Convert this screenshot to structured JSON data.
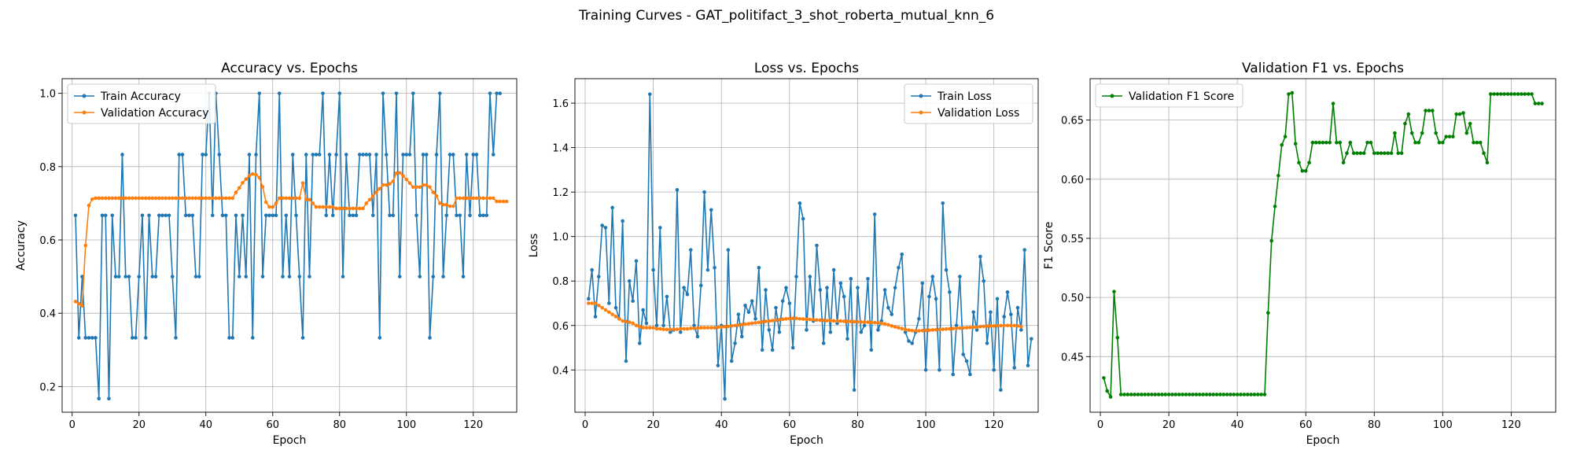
{
  "figure": {
    "suptitle": "Training Curves - GAT_politifact_3_shot_roberta_mutual_knn_6"
  },
  "chart_data": [
    {
      "type": "line",
      "title": "Accuracy vs. Epochs",
      "xlabel": "Epoch",
      "ylabel": "Accuracy",
      "xlim": [
        -3,
        133
      ],
      "ylim": [
        0.13,
        1.04
      ],
      "xticks": [
        0,
        20,
        40,
        60,
        80,
        100,
        120
      ],
      "yticks": [
        0.2,
        0.4,
        0.6,
        0.8,
        1.0
      ],
      "ytick_labels": [
        "0.2",
        "0.4",
        "0.6",
        "0.8",
        "1.0"
      ],
      "grid": true,
      "legend": "upper-left",
      "series": [
        {
          "name": "Train Accuracy",
          "color": "#1f77b4",
          "values": [
            0.667,
            0.333,
            0.5,
            0.333,
            0.333,
            0.333,
            0.333,
            0.167,
            0.667,
            0.667,
            0.167,
            0.667,
            0.5,
            0.5,
            0.833,
            0.5,
            0.5,
            0.333,
            0.333,
            0.5,
            0.667,
            0.333,
            0.667,
            0.5,
            0.5,
            0.667,
            0.667,
            0.667,
            0.667,
            0.5,
            0.333,
            0.833,
            0.833,
            0.667,
            0.667,
            0.667,
            0.5,
            0.5,
            0.833,
            0.833,
            1.0,
            0.667,
            1.0,
            0.833,
            0.667,
            0.667,
            0.333,
            0.333,
            0.667,
            0.5,
            0.667,
            0.5,
            0.833,
            0.333,
            0.833,
            1.0,
            0.5,
            0.667,
            0.667,
            0.667,
            0.667,
            1.0,
            0.5,
            0.667,
            0.5,
            0.833,
            0.667,
            0.5,
            0.333,
            0.833,
            0.5,
            0.833,
            0.833,
            0.833,
            1.0,
            0.667,
            0.833,
            0.667,
            0.833,
            1.0,
            0.5,
            0.833,
            0.667,
            0.667,
            0.667,
            0.833,
            0.833,
            0.833,
            0.833,
            0.667,
            0.833,
            0.333,
            1.0,
            0.833,
            0.667,
            0.667,
            1.0,
            0.5,
            0.833,
            0.833,
            0.833,
            1.0,
            0.667,
            0.5,
            0.833,
            0.833,
            0.333,
            0.5,
            0.833,
            1.0,
            0.5,
            0.667,
            0.833,
            0.833,
            0.667,
            0.667,
            0.5,
            0.833,
            0.667,
            0.833,
            0.833,
            0.667,
            0.667,
            0.667,
            1.0,
            0.833,
            1.0,
            1.0
          ]
        },
        {
          "name": "Validation Accuracy",
          "color": "#ff7f0e",
          "values": [
            0.432,
            0.426,
            0.42,
            0.585,
            0.694,
            0.711,
            0.714,
            0.714,
            0.714,
            0.714,
            0.714,
            0.714,
            0.714,
            0.714,
            0.714,
            0.714,
            0.714,
            0.714,
            0.714,
            0.714,
            0.714,
            0.714,
            0.714,
            0.714,
            0.714,
            0.714,
            0.714,
            0.714,
            0.714,
            0.714,
            0.714,
            0.714,
            0.714,
            0.714,
            0.714,
            0.714,
            0.714,
            0.714,
            0.714,
            0.714,
            0.714,
            0.714,
            0.714,
            0.714,
            0.714,
            0.714,
            0.714,
            0.714,
            0.73,
            0.742,
            0.756,
            0.766,
            0.775,
            0.78,
            0.778,
            0.77,
            0.745,
            0.703,
            0.69,
            0.69,
            0.7,
            0.714,
            0.714,
            0.714,
            0.714,
            0.714,
            0.714,
            0.714,
            0.755,
            0.71,
            0.71,
            0.7,
            0.69,
            0.69,
            0.69,
            0.69,
            0.69,
            0.69,
            0.686,
            0.686,
            0.686,
            0.686,
            0.686,
            0.686,
            0.686,
            0.686,
            0.686,
            0.7,
            0.71,
            0.72,
            0.73,
            0.74,
            0.75,
            0.75,
            0.753,
            0.76,
            0.782,
            0.783,
            0.775,
            0.765,
            0.755,
            0.744,
            0.744,
            0.744,
            0.75,
            0.75,
            0.744,
            0.73,
            0.72,
            0.7,
            0.696,
            0.696,
            0.692,
            0.692,
            0.714,
            0.714,
            0.714,
            0.714,
            0.714,
            0.714,
            0.714,
            0.714,
            0.714,
            0.714,
            0.714,
            0.714,
            0.705,
            0.705,
            0.705,
            0.705
          ]
        }
      ]
    },
    {
      "type": "line",
      "title": "Loss vs. Epochs",
      "xlabel": "Epoch",
      "ylabel": "Loss",
      "xlim": [
        -3,
        133
      ],
      "ylim": [
        0.21,
        1.71
      ],
      "xticks": [
        0,
        20,
        40,
        60,
        80,
        100,
        120
      ],
      "yticks": [
        0.4,
        0.6,
        0.8,
        1.0,
        1.2,
        1.4,
        1.6
      ],
      "ytick_labels": [
        "0.4",
        "0.6",
        "0.8",
        "1.0",
        "1.2",
        "1.4",
        "1.6"
      ],
      "grid": true,
      "legend": "upper-right",
      "series": [
        {
          "name": "Train Loss",
          "color": "#1f77b4",
          "values": [
            0.72,
            0.85,
            0.64,
            0.82,
            1.05,
            1.04,
            0.7,
            1.13,
            0.68,
            0.63,
            1.07,
            0.44,
            0.8,
            0.71,
            0.89,
            0.52,
            0.67,
            0.61,
            1.64,
            0.85,
            0.6,
            1.04,
            0.6,
            0.73,
            0.57,
            0.58,
            1.21,
            0.57,
            0.77,
            0.74,
            0.94,
            0.6,
            0.55,
            0.78,
            1.2,
            0.85,
            1.12,
            0.86,
            0.42,
            0.6,
            0.27,
            0.94,
            0.44,
            0.52,
            0.65,
            0.55,
            0.69,
            0.66,
            0.71,
            0.63,
            0.86,
            0.49,
            0.76,
            0.58,
            0.49,
            0.68,
            0.57,
            0.71,
            0.77,
            0.7,
            0.5,
            0.82,
            1.15,
            1.08,
            0.58,
            0.82,
            0.62,
            0.96,
            0.76,
            0.52,
            0.77,
            0.57,
            0.85,
            0.61,
            0.79,
            0.73,
            0.54,
            0.81,
            0.31,
            0.77,
            0.57,
            0.6,
            0.81,
            0.49,
            1.1,
            0.58,
            0.62,
            0.76,
            0.68,
            0.65,
            0.77,
            0.86,
            0.92,
            0.57,
            0.53,
            0.52,
            0.57,
            0.63,
            0.79,
            0.4,
            0.73,
            0.82,
            0.72,
            0.4,
            1.15,
            0.85,
            0.75,
            0.38,
            0.6,
            0.82,
            0.47,
            0.44,
            0.38,
            0.66,
            0.58,
            0.91,
            0.8,
            0.52,
            0.66,
            0.4,
            0.72,
            0.31,
            0.64,
            0.75,
            0.65,
            0.41,
            0.68,
            0.58,
            0.94,
            0.42,
            0.54
          ]
        },
        {
          "name": "Validation Loss",
          "color": "#ff7f0e",
          "values": [
            0.7,
            0.7,
            0.7,
            0.69,
            0.68,
            0.67,
            0.66,
            0.65,
            0.64,
            0.63,
            0.62,
            0.618,
            0.615,
            0.61,
            0.6,
            0.595,
            0.59,
            0.59,
            0.59,
            0.59,
            0.585,
            0.585,
            0.583,
            0.582,
            0.582,
            0.583,
            0.583,
            0.585,
            0.585,
            0.585,
            0.587,
            0.587,
            0.588,
            0.59,
            0.59,
            0.59,
            0.59,
            0.59,
            0.592,
            0.593,
            0.595,
            0.596,
            0.598,
            0.6,
            0.602,
            0.604,
            0.606,
            0.608,
            0.61,
            0.612,
            0.614,
            0.616,
            0.618,
            0.62,
            0.622,
            0.624,
            0.626,
            0.628,
            0.63,
            0.631,
            0.632,
            0.632,
            0.63,
            0.629,
            0.628,
            0.627,
            0.626,
            0.625,
            0.624,
            0.623,
            0.622,
            0.622,
            0.621,
            0.62,
            0.62,
            0.619,
            0.618,
            0.618,
            0.617,
            0.616,
            0.616,
            0.615,
            0.615,
            0.614,
            0.613,
            0.612,
            0.61,
            0.607,
            0.603,
            0.598,
            0.594,
            0.59,
            0.586,
            0.582,
            0.579,
            0.577,
            0.576,
            0.576,
            0.577,
            0.578,
            0.579,
            0.58,
            0.581,
            0.582,
            0.583,
            0.584,
            0.585,
            0.586,
            0.587,
            0.588,
            0.589,
            0.59,
            0.591,
            0.592,
            0.593,
            0.595,
            0.596,
            0.597,
            0.598,
            0.598,
            0.599,
            0.599,
            0.6,
            0.6,
            0.6,
            0.6,
            0.598,
            0.595
          ]
        }
      ]
    },
    {
      "type": "line",
      "title": "Validation F1 vs. Epochs",
      "xlabel": "Epoch",
      "ylabel": "F1 Score",
      "xlim": [
        -3,
        133
      ],
      "ylim": [
        0.403,
        0.685
      ],
      "xticks": [
        0,
        20,
        40,
        60,
        80,
        100,
        120
      ],
      "yticks": [
        0.45,
        0.5,
        0.55,
        0.6,
        0.65
      ],
      "ytick_labels": [
        "0.45",
        "0.50",
        "0.55",
        "0.60",
        "0.65"
      ],
      "grid": true,
      "legend": "upper-left",
      "series": [
        {
          "name": "Validation F1 Score",
          "color": "#008000",
          "values": [
            0.432,
            0.421,
            0.416,
            0.505,
            0.466,
            0.418,
            0.418,
            0.418,
            0.418,
            0.418,
            0.418,
            0.418,
            0.418,
            0.418,
            0.418,
            0.418,
            0.418,
            0.418,
            0.418,
            0.418,
            0.418,
            0.418,
            0.418,
            0.418,
            0.418,
            0.418,
            0.418,
            0.418,
            0.418,
            0.418,
            0.418,
            0.418,
            0.418,
            0.418,
            0.418,
            0.418,
            0.418,
            0.418,
            0.418,
            0.418,
            0.418,
            0.418,
            0.418,
            0.418,
            0.418,
            0.418,
            0.418,
            0.418,
            0.487,
            0.548,
            0.577,
            0.603,
            0.629,
            0.636,
            0.672,
            0.673,
            0.63,
            0.614,
            0.607,
            0.607,
            0.614,
            0.631,
            0.631,
            0.631,
            0.631,
            0.631,
            0.631,
            0.664,
            0.631,
            0.631,
            0.614,
            0.622,
            0.631,
            0.622,
            0.622,
            0.622,
            0.622,
            0.631,
            0.631,
            0.622,
            0.622,
            0.622,
            0.622,
            0.622,
            0.622,
            0.639,
            0.622,
            0.622,
            0.647,
            0.655,
            0.639,
            0.631,
            0.631,
            0.639,
            0.658,
            0.658,
            0.658,
            0.639,
            0.631,
            0.631,
            0.636,
            0.636,
            0.636,
            0.655,
            0.655,
            0.656,
            0.639,
            0.647,
            0.631,
            0.631,
            0.631,
            0.622,
            0.614,
            0.672,
            0.672,
            0.672,
            0.672,
            0.672,
            0.672,
            0.672,
            0.672,
            0.672,
            0.672,
            0.672,
            0.672,
            0.672,
            0.664,
            0.664,
            0.664
          ]
        }
      ]
    }
  ]
}
